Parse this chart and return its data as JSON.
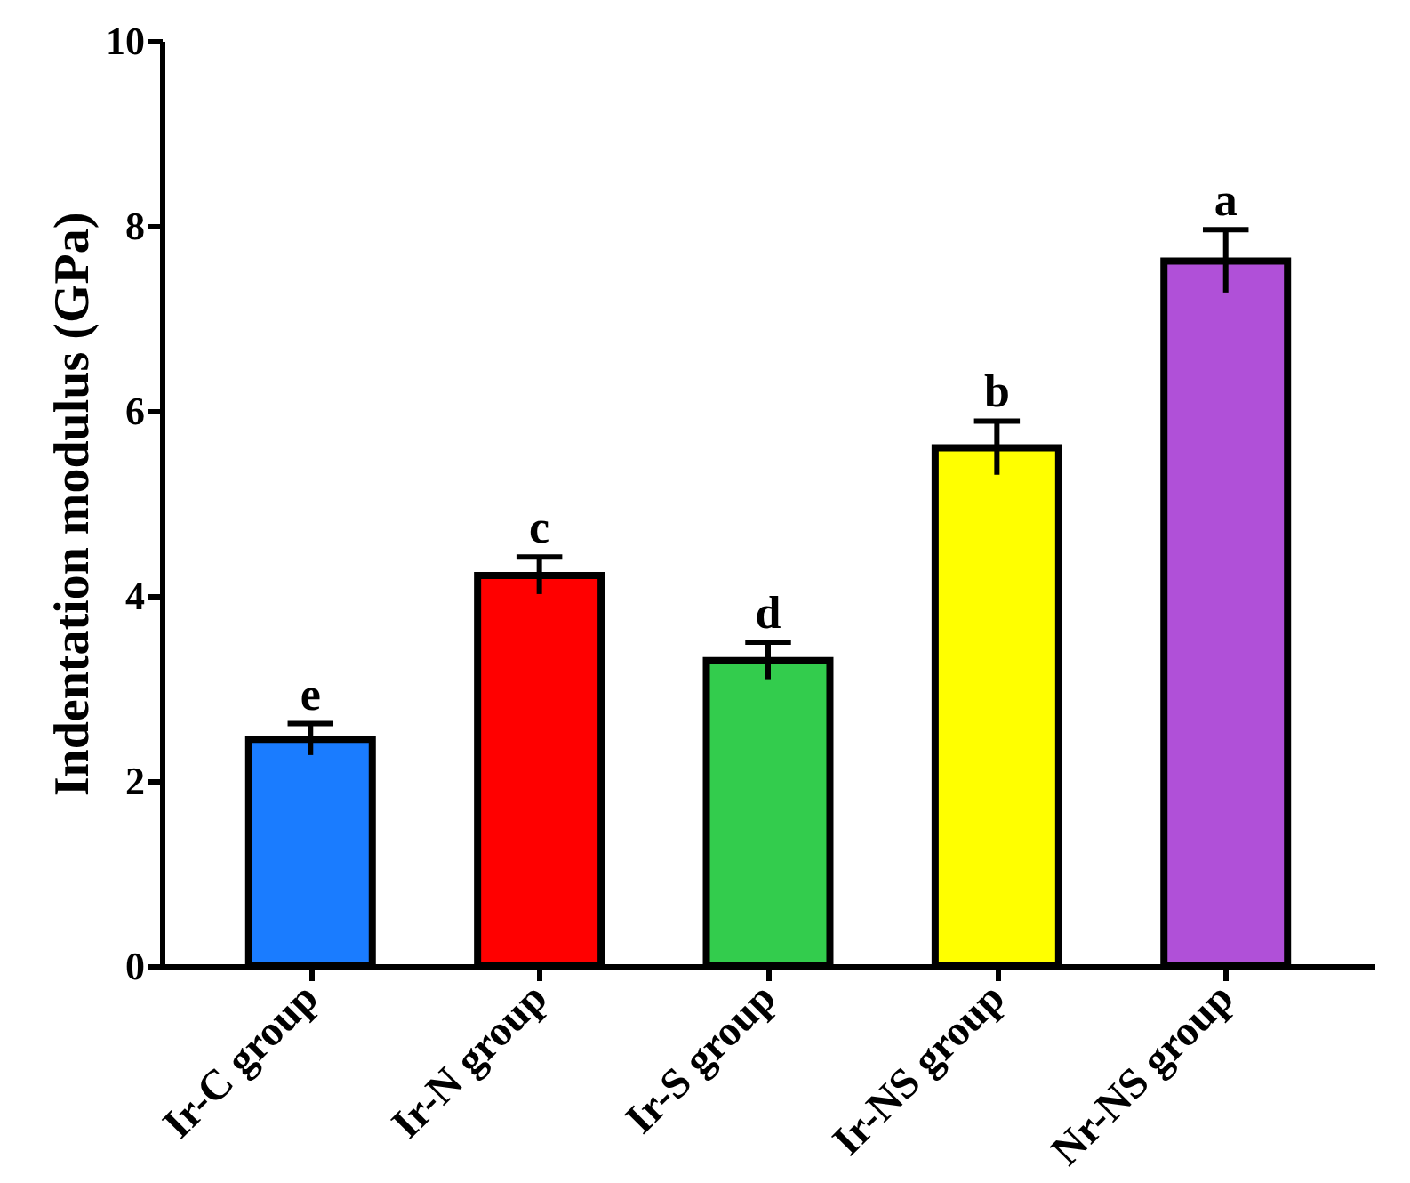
{
  "chart_data": {
    "type": "bar",
    "ylabel": "Indentation modulus (GPa)",
    "categories": [
      "Ir-C group",
      "Ir-N group",
      "Ir-S group",
      "Ir-NS group",
      "Nr-NS group"
    ],
    "values": [
      2.45,
      4.22,
      3.3,
      5.6,
      7.62
    ],
    "colors": [
      "#1a7cff",
      "#ff0000",
      "#33cc4d",
      "#ffff00",
      "#b050d8"
    ],
    "errors": [
      0.17,
      0.2,
      0.2,
      0.29,
      0.34
    ],
    "ylim": [
      0,
      10
    ],
    "yticks": [
      0,
      2,
      4,
      6,
      8,
      10
    ],
    "grid": false,
    "legend": false,
    "annotations": [
      "e",
      "c",
      "d",
      "b",
      "a"
    ]
  }
}
